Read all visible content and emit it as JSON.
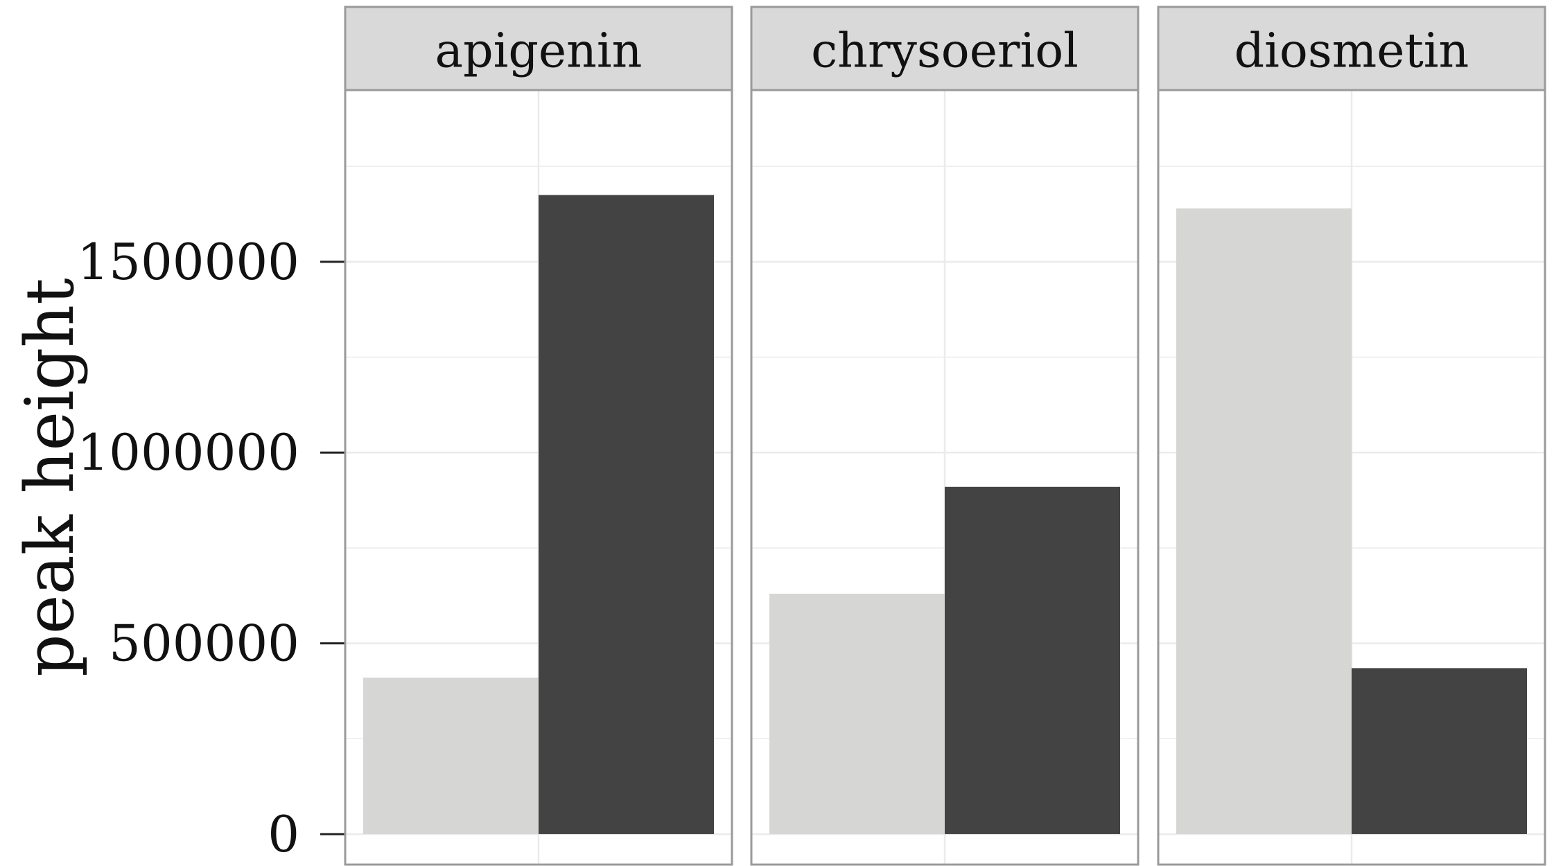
{
  "chart_data": {
    "type": "bar",
    "facets": [
      "apigenin",
      "chrysoeriol",
      "diosmetin"
    ],
    "series": [
      {
        "values": [
          410000,
          630000,
          1640000
        ]
      },
      {
        "values": [
          1675000,
          910000,
          435000
        ]
      }
    ],
    "ylabel": "peak height",
    "xlabel": "",
    "ylim": [
      -80000,
      1950000
    ],
    "yticks": [
      0,
      500000,
      1000000,
      1500000
    ],
    "ytick_labels": [
      "0",
      "500000",
      "1000000",
      "1500000"
    ],
    "grid": true,
    "colors": {
      "series": [
        "#d6d6d5",
        "#434343"
      ],
      "strip_fill": "#d9d9d9",
      "panel_border": "#9a9a9a",
      "grid": "#ebebeb"
    }
  }
}
